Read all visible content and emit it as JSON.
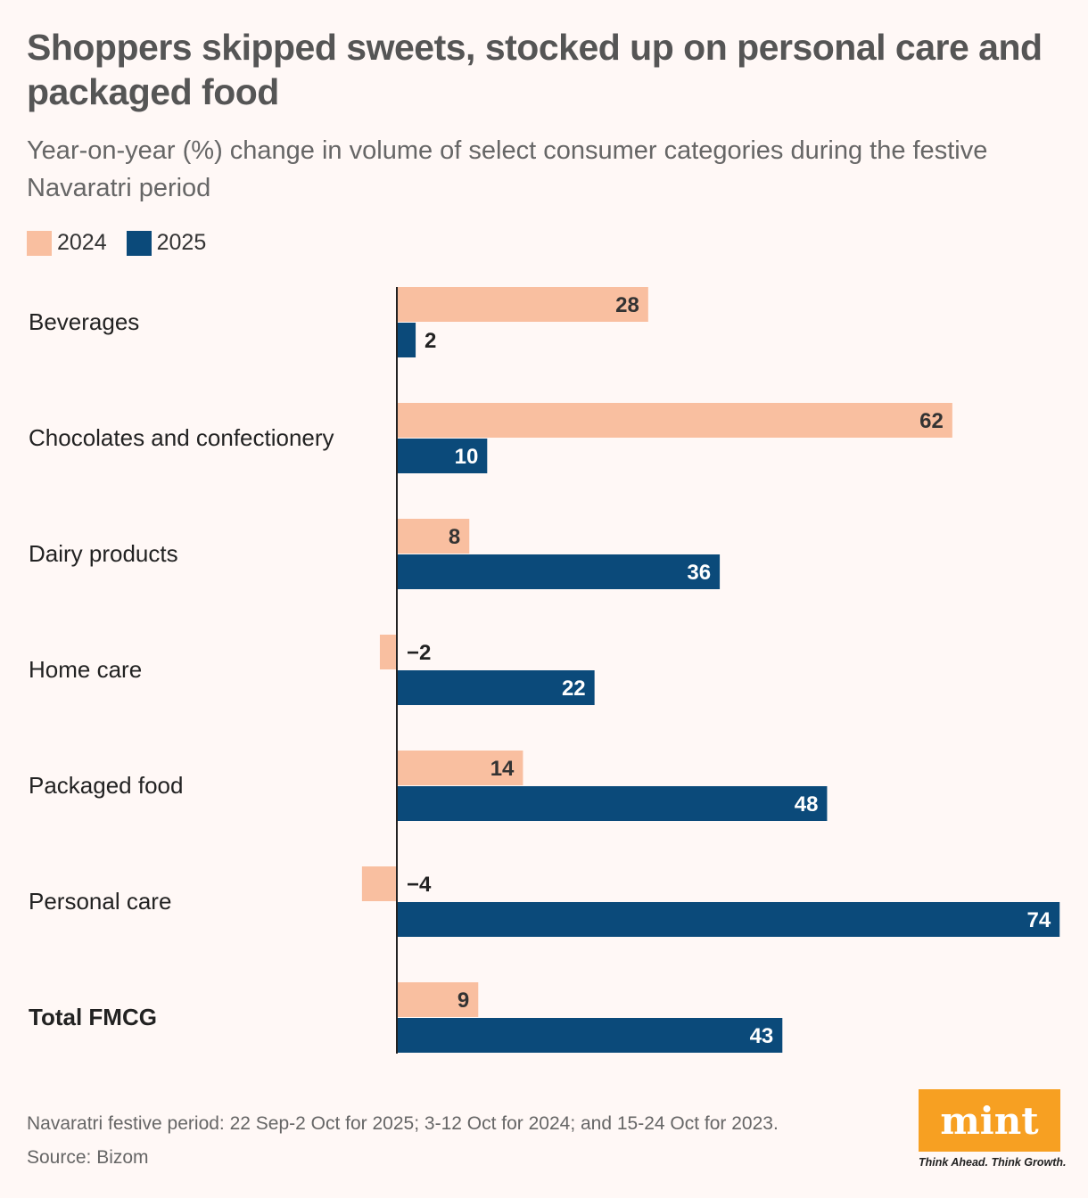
{
  "title": "Shoppers skipped sweets, stocked up on personal care and packaged food",
  "subtitle": "Year-on-year (%) change in volume of select consumer categories during the festive Navaratri period",
  "colors": {
    "s2024": "#f9bfa0",
    "s2025": "#0b4a7a",
    "background": "#fff8f6"
  },
  "chart_data": {
    "type": "bar",
    "orientation": "horizontal",
    "categories": [
      "Beverages",
      "Chocolates and confectionery",
      "Dairy products",
      "Home care",
      "Packaged food",
      "Personal care",
      "Total FMCG"
    ],
    "series": [
      {
        "name": "2024",
        "values": [
          28,
          62,
          8,
          -2,
          14,
          -4,
          9
        ],
        "labels": [
          "28",
          "62",
          "8",
          "−2",
          "14",
          "−4",
          "9"
        ]
      },
      {
        "name": "2025",
        "values": [
          2,
          10,
          36,
          22,
          48,
          74,
          43
        ],
        "labels": [
          "2",
          "10",
          "36",
          "22",
          "48",
          "74",
          "43"
        ]
      }
    ],
    "xlim": [
      -4,
      74
    ],
    "grid": false,
    "legend": "top-left",
    "bold_categories": [
      "Total FMCG"
    ]
  },
  "notes": {
    "period": "Navaratri festive period: 22 Sep-2 Oct for 2025; 3-12 Oct for 2024; and 15-24 Oct for 2023.",
    "source": "Source: Bizom"
  },
  "logo": {
    "name": "mint",
    "tagline": "Think Ahead. Think Growth."
  }
}
